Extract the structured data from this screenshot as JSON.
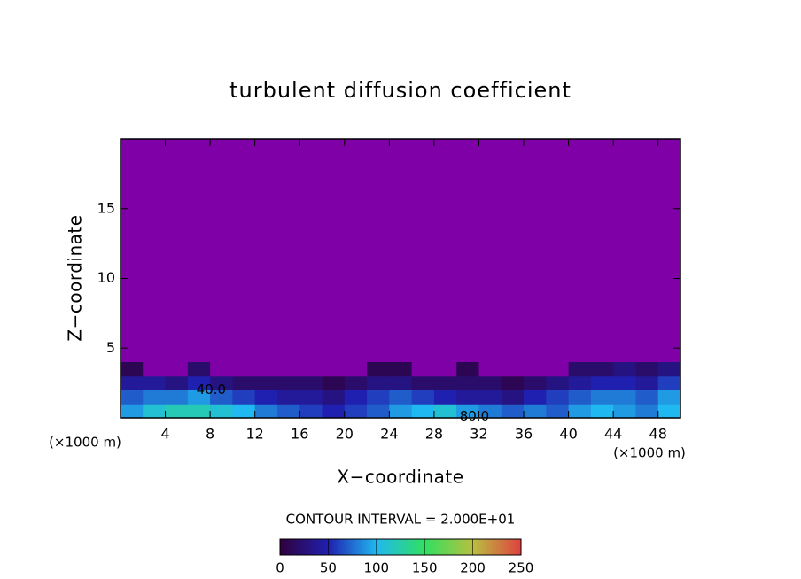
{
  "chart_data": {
    "type": "contour",
    "title": "turbulent diffusion coefficient",
    "x_label": "X−coordinate",
    "y_label": "Z−coordinate",
    "x_unit_label": "(×1000 m)",
    "x_unit_label_right": "(×1000 m)",
    "contour_interval": "CONTOUR INTERVAL = 2.000E+01",
    "xlim": [
      0,
      50
    ],
    "ylim": [
      0,
      20
    ],
    "xticks": [
      4,
      8,
      12,
      16,
      20,
      24,
      28,
      32,
      36,
      40,
      44,
      48
    ],
    "yticks": [
      5,
      10,
      15
    ],
    "x": [
      0,
      2,
      4,
      6,
      8,
      10,
      12,
      14,
      16,
      18,
      20,
      22,
      24,
      26,
      28,
      30,
      32,
      34,
      36,
      38,
      40,
      42,
      44,
      46,
      48
    ],
    "z": [
      0,
      1,
      2,
      3
    ],
    "values": [
      [
        90,
        110,
        120,
        120,
        110,
        100,
        80,
        70,
        60,
        50,
        60,
        70,
        90,
        100,
        110,
        90,
        80,
        70,
        80,
        70,
        90,
        100,
        90,
        80,
        100
      ],
      [
        70,
        80,
        80,
        90,
        70,
        60,
        50,
        40,
        40,
        30,
        50,
        60,
        70,
        60,
        50,
        40,
        40,
        30,
        50,
        60,
        70,
        80,
        80,
        70,
        90
      ],
      [
        40,
        40,
        30,
        50,
        30,
        20,
        20,
        20,
        20,
        10,
        20,
        30,
        30,
        20,
        20,
        20,
        20,
        10,
        20,
        30,
        40,
        50,
        50,
        40,
        60
      ],
      [
        10,
        0,
        0,
        20,
        0,
        0,
        0,
        0,
        0,
        0,
        0,
        10,
        10,
        0,
        0,
        10,
        0,
        0,
        0,
        0,
        20,
        20,
        30,
        20,
        30
      ]
    ],
    "background_color": "#8000a8",
    "colormap": [
      "#30003c",
      "#2020b0",
      "#20b8f0",
      "#30e060",
      "#b8c040",
      "#e04040"
    ],
    "zlim": [
      0,
      250
    ],
    "colorbar_ticks": [
      0,
      50,
      100,
      150,
      200,
      250
    ],
    "annotations": [
      {
        "text": "40.0",
        "x": 8.1,
        "y": 2.0
      },
      {
        "text": "80.0",
        "x": 31.6,
        "y": 0.1
      }
    ]
  }
}
